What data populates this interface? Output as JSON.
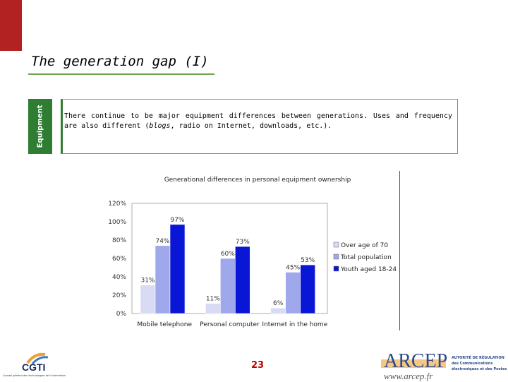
{
  "page": {
    "title": "The generation gap (I)",
    "section_label": "Equipment",
    "intro_before_em": "There continue to be major equipment differences between generations. Uses and frequency are also different (",
    "intro_em": "blogs",
    "intro_after_em": ", radio on Internet, downloads, etc.).",
    "page_number": "23"
  },
  "footer": {
    "cgti_name": "CGTI",
    "cgti_subtitle": "Conseil général des technologies de l'information",
    "arcep_name": "ARCEP",
    "arcep_url": "www.arcep.fr",
    "arcep_desc": "AUTORITÉ DE RÉGULATION des Communications électroniques et des Postes"
  },
  "colors": {
    "accent_red": "#b22222",
    "accent_green": "#2f7d32",
    "series_1": "#d9dbf5",
    "series_2": "#9ea8ea",
    "series_3": "#0a16d6"
  },
  "chart_data": {
    "type": "bar",
    "title": "Generational differences in personal equipment ownership",
    "categories": [
      "Mobile telephone",
      "Personal computer",
      "Internet in the home"
    ],
    "series": [
      {
        "name": "Over age of 70",
        "values": [
          31,
          11,
          6
        ]
      },
      {
        "name": "Total population",
        "values": [
          74,
          60,
          45
        ]
      },
      {
        "name": "Youth aged 18-24",
        "values": [
          97,
          73,
          53
        ]
      }
    ],
    "data_labels": [
      [
        "31%",
        "11%",
        "6%"
      ],
      [
        "74%",
        "60%",
        "45%"
      ],
      [
        "97%",
        "73%",
        "53%"
      ]
    ],
    "y_ticks": [
      "0%",
      "20%",
      "40%",
      "60%",
      "80%",
      "100%",
      "120%"
    ],
    "ylim": [
      0,
      120
    ],
    "legend": "right",
    "grid": false
  }
}
